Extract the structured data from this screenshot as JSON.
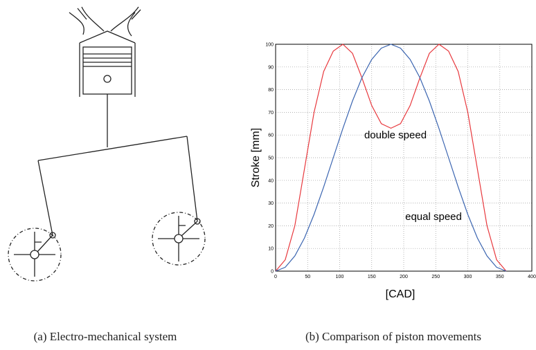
{
  "chart_data": {
    "type": "line",
    "x_label": "[CAD]",
    "y_label": "Stroke [mm]",
    "x": [
      0,
      15,
      30,
      45,
      60,
      75,
      90,
      105,
      120,
      135,
      150,
      165,
      180,
      195,
      210,
      225,
      240,
      255,
      270,
      285,
      300,
      315,
      330,
      345,
      360
    ],
    "series": [
      {
        "name": "double speed",
        "color": "#e8383d",
        "values": [
          0,
          5,
          20,
          45,
          70,
          88,
          97,
          100,
          96,
          85,
          73,
          65,
          63,
          65,
          73,
          85,
          96,
          100,
          97,
          88,
          70,
          45,
          20,
          5,
          0
        ]
      },
      {
        "name": "equal speed",
        "color": "#3a64b0",
        "values": [
          0,
          1.7,
          6.7,
          14.6,
          25,
          37.1,
          50,
          62.9,
          75,
          85.4,
          93.3,
          98.3,
          100,
          98.3,
          93.3,
          85.4,
          75,
          62.9,
          50,
          37.1,
          25,
          14.6,
          6.7,
          1.7,
          0
        ]
      }
    ],
    "xlim": [
      0,
      400
    ],
    "xticks": [
      0,
      50,
      100,
      150,
      200,
      250,
      300,
      350,
      400
    ],
    "ylim": [
      0,
      100
    ],
    "yticks": [
      0,
      10,
      20,
      30,
      40,
      50,
      60,
      70,
      80,
      90,
      100
    ],
    "grid": true
  },
  "captions": [
    "(a) Electro-mechanical system",
    "(b) Comparison of piston movements"
  ]
}
